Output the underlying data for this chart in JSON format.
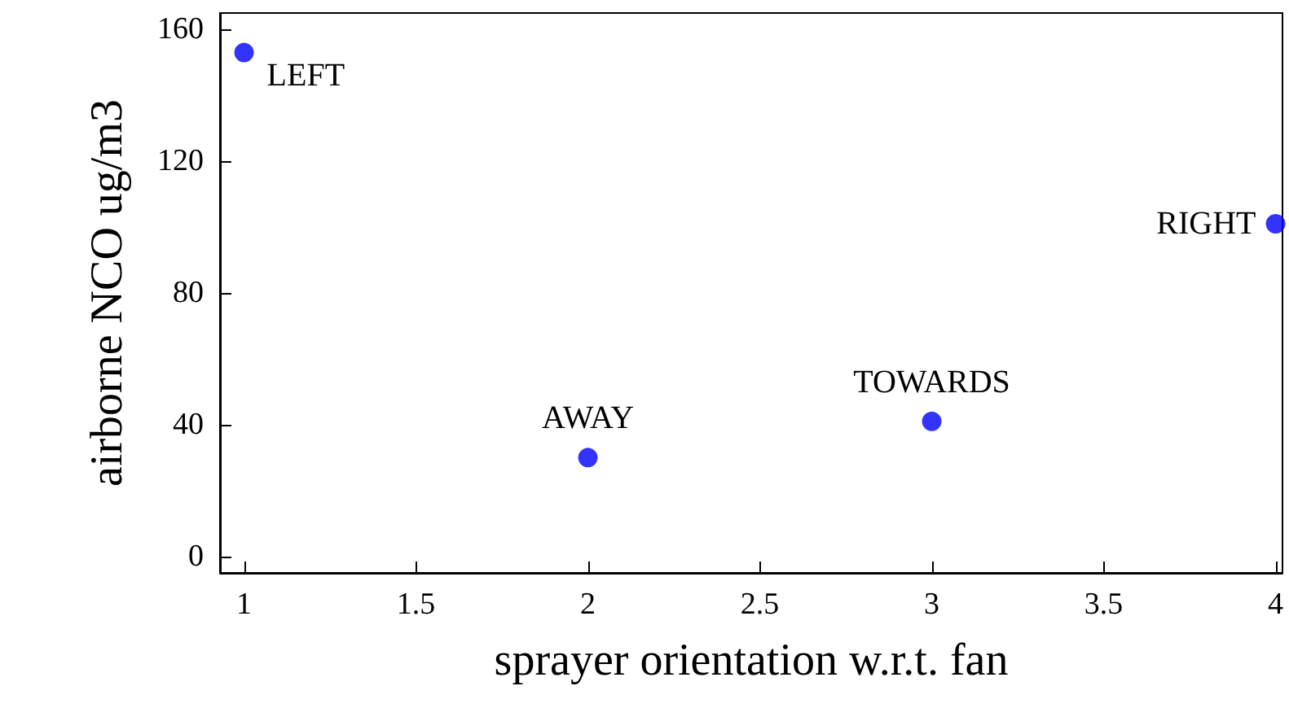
{
  "chart_data": {
    "type": "scatter",
    "xlabel": "sprayer orientation w.r.t. fan",
    "ylabel": "airborne NCO ug/m3",
    "x": [
      1,
      2,
      3,
      4
    ],
    "series": [
      {
        "color": "#0000ff",
        "values": [
          153,
          30,
          41,
          101
        ]
      }
    ],
    "xlim": [
      0.93,
      4.02
    ],
    "xticks": [
      1,
      1.5,
      2,
      2.5,
      3,
      3.5,
      4
    ],
    "ylim": [
      -5,
      165
    ],
    "yticks": [
      0,
      40,
      80,
      120,
      160
    ],
    "grid": false,
    "marker": "circle",
    "annotations": [
      {
        "text": "LEFT",
        "x": 1,
        "y": 153
      },
      {
        "text": "AWAY",
        "x": 2,
        "y": 30
      },
      {
        "text": "TOWARDS",
        "x": 3,
        "y": 41
      },
      {
        "text": "RIGHT",
        "x": 4,
        "y": 101
      }
    ]
  }
}
